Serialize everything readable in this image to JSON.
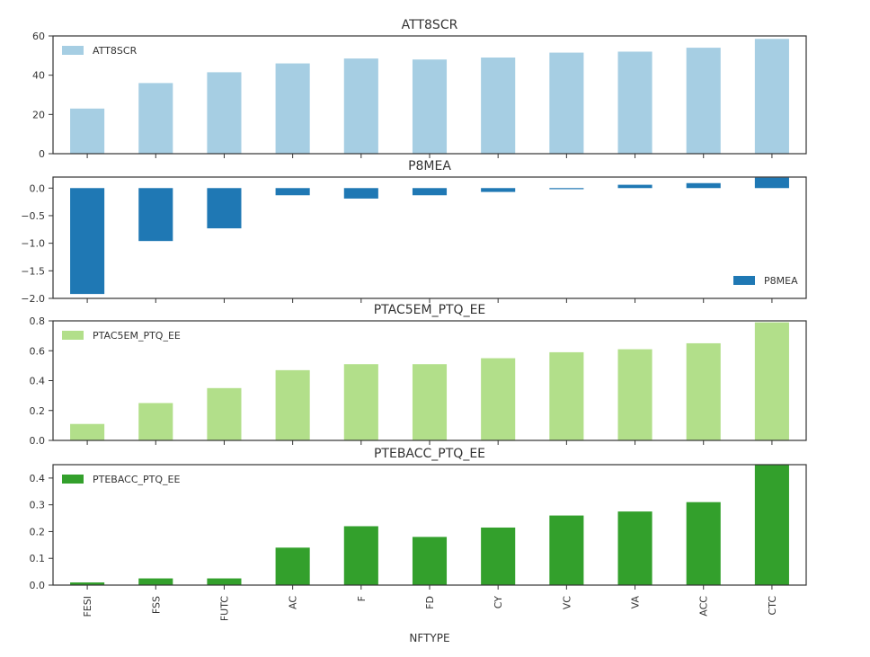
{
  "chart_data": {
    "type": "bar",
    "xlabel": "NFTYPE",
    "categories": [
      "FESI",
      "FSS",
      "FUTC",
      "AC",
      "F",
      "FD",
      "CY",
      "VC",
      "VA",
      "ACC",
      "CTC"
    ],
    "panels": [
      {
        "title": "ATT8SCR",
        "color": "#a6cee3",
        "legend_position": "top-left",
        "ylim": [
          0,
          60
        ],
        "yticks": [
          0,
          20,
          40,
          60
        ],
        "ytick_labels": [
          "0",
          "20",
          "40",
          "60"
        ],
        "series": [
          {
            "name": "ATT8SCR",
            "values": [
              23,
              36,
              41.5,
              46,
              48.5,
              48,
              49,
              51.5,
              52,
              54,
              58.5
            ]
          }
        ]
      },
      {
        "title": "P8MEA",
        "color": "#1f78b4",
        "legend_position": "bottom-right",
        "ylim": [
          -2.0,
          0.2
        ],
        "yticks": [
          0.0,
          -0.5,
          -1.0,
          -1.5,
          -2.0
        ],
        "ytick_labels": [
          "0.0",
          "−0.5",
          "−1.0",
          "−1.5",
          "−2.0"
        ],
        "series": [
          {
            "name": "P8MEA",
            "values": [
              -1.92,
              -0.96,
              -0.73,
              -0.13,
              -0.19,
              -0.13,
              -0.07,
              -0.02,
              0.06,
              0.09,
              0.19
            ]
          }
        ]
      },
      {
        "title": "PTAC5EM_PTQ_EE",
        "color": "#b2df8a",
        "legend_position": "top-left",
        "ylim": [
          0,
          0.8
        ],
        "yticks": [
          0,
          0.2,
          0.4,
          0.6,
          0.8
        ],
        "ytick_labels": [
          "0.0",
          "0.2",
          "0.4",
          "0.6",
          "0.8"
        ],
        "series": [
          {
            "name": "PTAC5EM_PTQ_EE",
            "values": [
              0.11,
              0.25,
              0.35,
              0.47,
              0.51,
              0.51,
              0.55,
              0.59,
              0.61,
              0.65,
              0.79
            ]
          }
        ]
      },
      {
        "title": "PTEBACC_PTQ_EE",
        "color": "#33a02c",
        "legend_position": "top-left",
        "ylim": [
          0,
          0.45
        ],
        "yticks": [
          0,
          0.1,
          0.2,
          0.3,
          0.4
        ],
        "ytick_labels": [
          "0.0",
          "0.1",
          "0.2",
          "0.3",
          "0.4"
        ],
        "series": [
          {
            "name": "PTEBACC_PTQ_EE",
            "values": [
              0.01,
              0.025,
              0.025,
              0.14,
              0.22,
              0.18,
              0.215,
              0.26,
              0.275,
              0.31,
              0.45
            ]
          }
        ]
      }
    ]
  }
}
